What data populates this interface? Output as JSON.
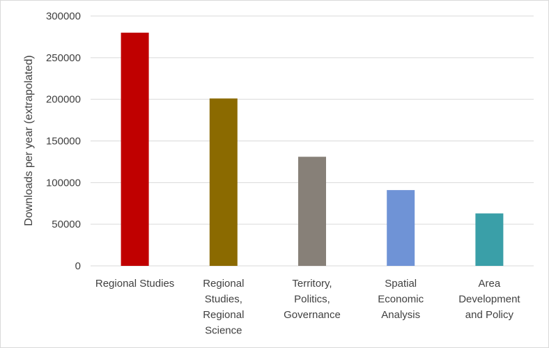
{
  "chart_data": {
    "type": "bar",
    "title": "",
    "xlabel": "",
    "ylabel": "Downloads per year (extrapolated)",
    "ylim": [
      0,
      300000
    ],
    "yticks": [
      0,
      50000,
      100000,
      150000,
      200000,
      250000,
      300000
    ],
    "grid": true,
    "legend": "none",
    "categories": [
      [
        "Regional Studies"
      ],
      [
        "Regional",
        "Studies,",
        "Regional",
        "Science"
      ],
      [
        "Territory,",
        "Politics,",
        "Governance"
      ],
      [
        "Spatial",
        "Economic",
        "Analysis"
      ],
      [
        "Area",
        "Development",
        "and Policy"
      ]
    ],
    "values": [
      280000,
      201000,
      131000,
      91000,
      63000
    ],
    "colors": [
      "#c00000",
      "#8b6a00",
      "#878078",
      "#6f93d6",
      "#3a9fa8"
    ]
  }
}
